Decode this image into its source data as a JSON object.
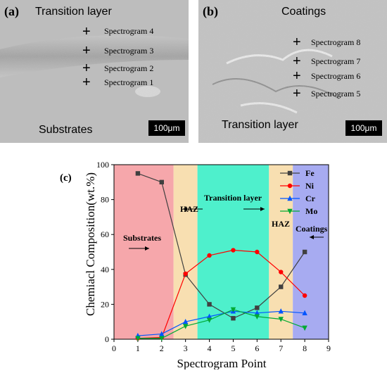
{
  "panel_a": {
    "label": "(a)",
    "top_region": "Transition layer",
    "bottom_region": "Substrates",
    "spectrograms": [
      "Spectrogram 4",
      "Spectrogram 3",
      "Spectrogram 2",
      "Spectrogram 1"
    ],
    "scale": "100μm"
  },
  "panel_b": {
    "label": "(b)",
    "top_region": "Coatings",
    "bottom_region": "Transition layer",
    "spectrograms": [
      "Spectrogram 8",
      "Spectrogram 7",
      "Spectrogram 6",
      "Spectrogram 5"
    ],
    "scale": "100μm"
  },
  "chart_data": {
    "type": "line",
    "panel_label": "(c)",
    "xlabel": "Spectrogram Point",
    "ylabel": "Chemiacl Composition(wt.%)",
    "xlim": [
      0,
      9
    ],
    "ylim": [
      0,
      100
    ],
    "xticks": [
      0,
      1,
      2,
      3,
      4,
      5,
      6,
      7,
      8,
      9
    ],
    "yticks": [
      0,
      20,
      40,
      60,
      80,
      100
    ],
    "x": [
      1,
      2,
      3,
      4,
      5,
      6,
      7,
      8
    ],
    "series": [
      {
        "name": "Fe",
        "color": "#404040",
        "marker": "square",
        "values": [
          95,
          90,
          37,
          20,
          12,
          18,
          30,
          50
        ]
      },
      {
        "name": "Ni",
        "color": "#ff0000",
        "marker": "circle",
        "values": [
          0.5,
          1,
          37.5,
          48,
          51,
          50,
          38.5,
          25
        ]
      },
      {
        "name": "Cr",
        "color": "#0055ff",
        "marker": "triangle-up",
        "values": [
          2,
          3,
          10,
          13,
          16,
          15,
          16,
          15
        ]
      },
      {
        "name": "Mo",
        "color": "#00aa33",
        "marker": "triangle-down",
        "values": [
          0.5,
          0.5,
          7.5,
          11,
          17,
          13,
          11.5,
          6.5
        ]
      }
    ],
    "bands": [
      {
        "from": 0,
        "to": 2.5,
        "color": "#f6a7ab"
      },
      {
        "from": 2.5,
        "to": 3.5,
        "color": "#f8dfb1"
      },
      {
        "from": 3.5,
        "to": 6.5,
        "color": "#4ef0cc"
      },
      {
        "from": 6.5,
        "to": 7.5,
        "color": "#f8dfb1"
      },
      {
        "from": 7.5,
        "to": 9,
        "color": "#a7abf1"
      }
    ],
    "annotations": {
      "substrates": "Substrates",
      "haz_left": "HAZ",
      "transition": "Transition layer",
      "haz_right": "HAZ",
      "coatings": "Coatings"
    },
    "legend_position": "top-right"
  }
}
